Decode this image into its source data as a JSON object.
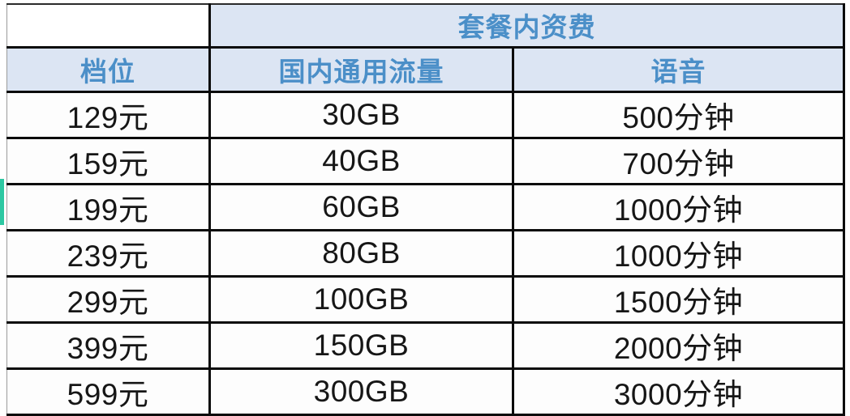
{
  "table": {
    "title": "套餐内资费",
    "columns": [
      "档位",
      "国内通用流量",
      "语音"
    ],
    "rows": [
      [
        "129元",
        "30GB",
        "500分钟"
      ],
      [
        "159元",
        "40GB",
        "700分钟"
      ],
      [
        "199元",
        "60GB",
        "1000分钟"
      ],
      [
        "239元",
        "80GB",
        "1000分钟"
      ],
      [
        "299元",
        "100GB",
        "1500分钟"
      ],
      [
        "399元",
        "150GB",
        "2000分钟"
      ],
      [
        "599元",
        "300GB",
        "3000分钟"
      ]
    ]
  },
  "chart_data": {
    "type": "table",
    "title": "套餐内资费",
    "columns": [
      "档位",
      "国内通用流量",
      "语音"
    ],
    "rows": [
      [
        "129元",
        "30GB",
        "500分钟"
      ],
      [
        "159元",
        "40GB",
        "700分钟"
      ],
      [
        "199元",
        "60GB",
        "1000分钟"
      ],
      [
        "239元",
        "80GB",
        "1000分钟"
      ],
      [
        "299元",
        "100GB",
        "1500分钟"
      ],
      [
        "399元",
        "150GB",
        "2000分钟"
      ],
      [
        "599元",
        "300GB",
        "3000分钟"
      ]
    ],
    "numeric": {
      "price_yuan": [
        129,
        159,
        199,
        239,
        299,
        399,
        599
      ],
      "data_gb": [
        30,
        40,
        60,
        80,
        100,
        150,
        300
      ],
      "voice_minutes": [
        500,
        700,
        1000,
        1000,
        1500,
        2000,
        3000
      ]
    }
  },
  "colors": {
    "header_bg": "#dce5f3",
    "header_text": "#4b8fc8",
    "body_text": "#161616",
    "grid_border": "#0b0b0b",
    "selection_marker": "#2dc8a2"
  }
}
